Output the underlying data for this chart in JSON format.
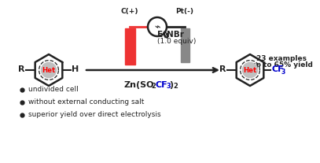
{
  "bg_color": "#ffffff",
  "bullet_points": [
    "undivided cell",
    "without external conducting salt",
    "superior yield over direct electrolysis"
  ],
  "yield_text1": "23 examples",
  "yield_text2": "up to 65% yield",
  "anode_label": "C(+)",
  "cathode_label": "Pt(-)",
  "hex_color": "#222222",
  "het_color": "#ff0000",
  "cf3_color": "#0000cc",
  "anode_color": "#ee3333",
  "cathode_color": "#888888",
  "arrow_color": "#222222",
  "wire_color_left": "#ee3333",
  "wire_color_right": "#222222"
}
